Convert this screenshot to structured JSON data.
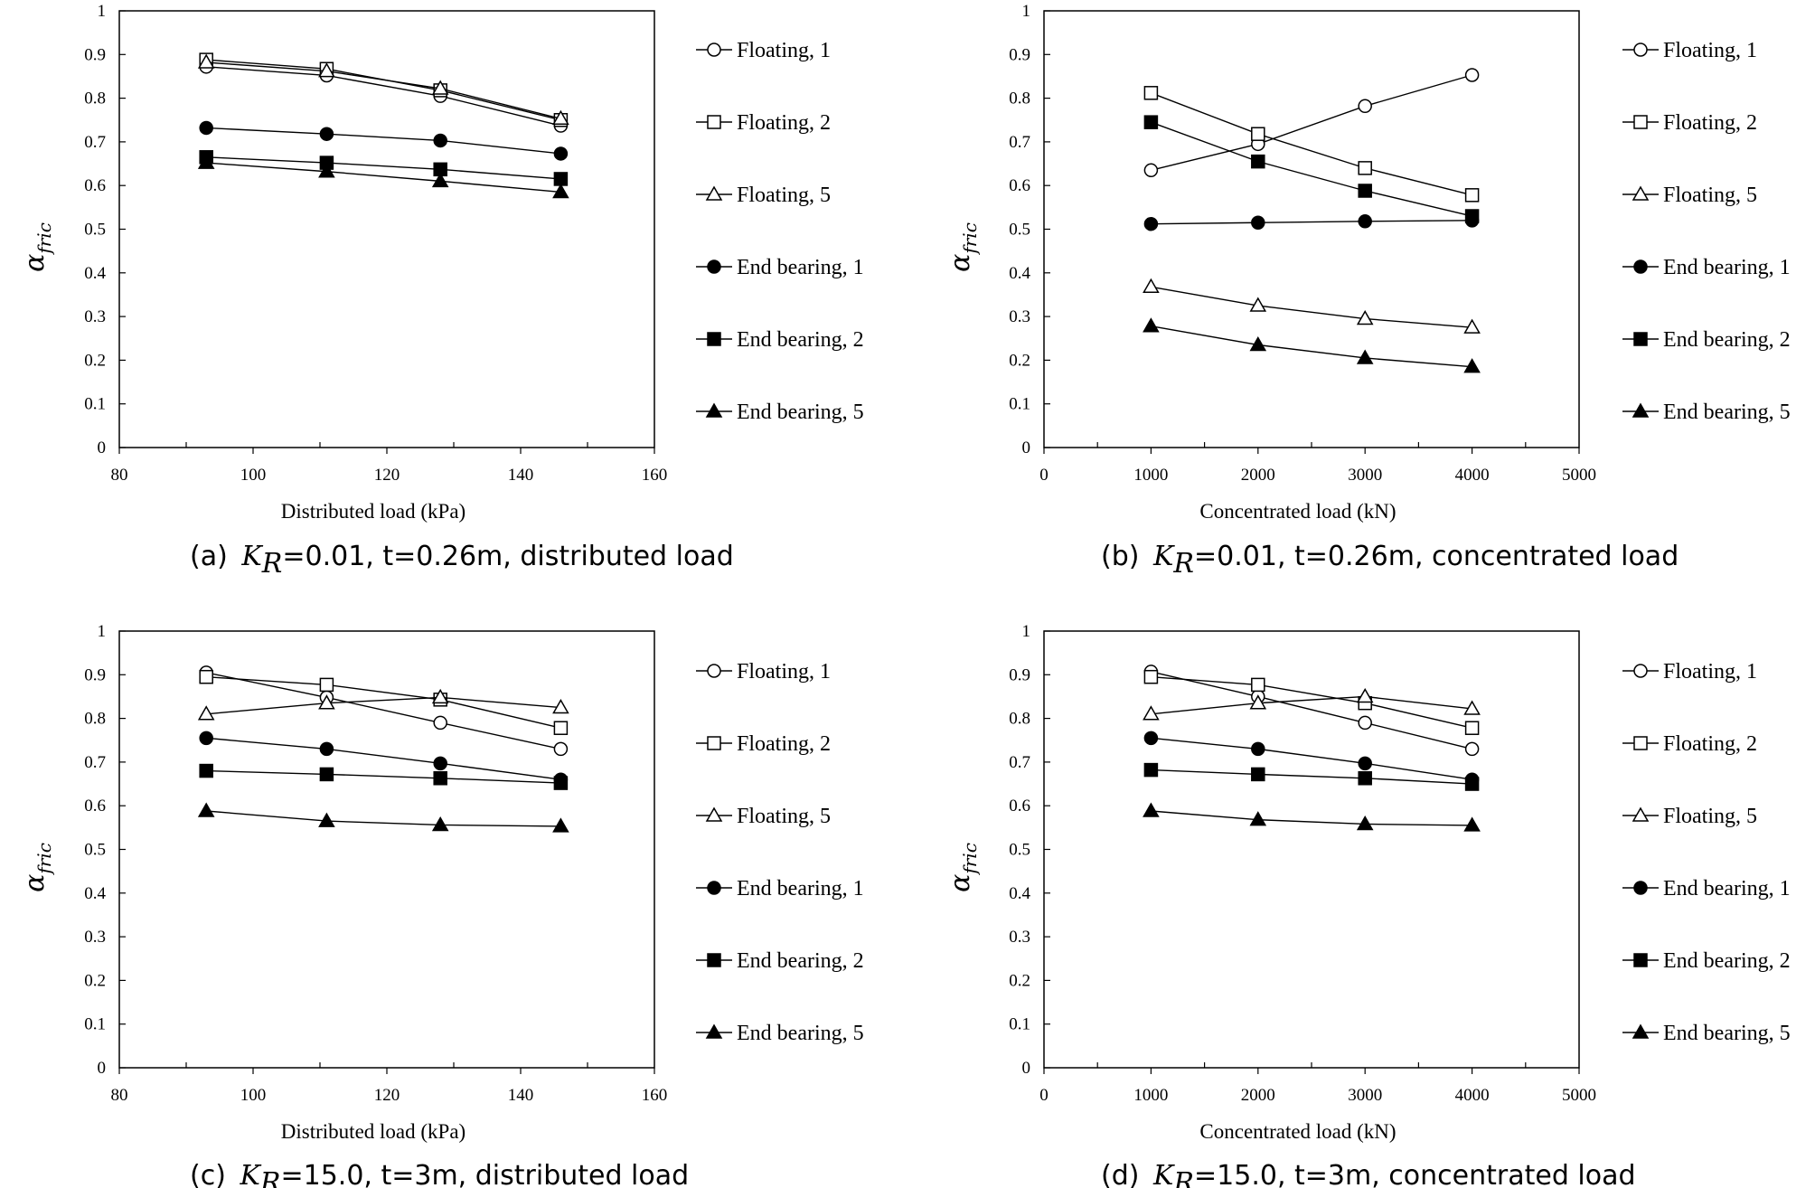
{
  "chart_data": [
    {
      "panel": "a",
      "type": "line",
      "caption": {
        "prefix": "(a) ",
        "symbol": "K",
        "sub": "R",
        "rest": "=0.01,  t=0.26m,  distributed load"
      },
      "xlabel": "Distributed load (kPa)",
      "ylabel": {
        "main": "α",
        "sub": "fric"
      },
      "xlim": [
        80,
        160
      ],
      "xticks": [
        80,
        100,
        120,
        140,
        160
      ],
      "ylim": [
        0,
        1
      ],
      "yticks": [
        0,
        0.1,
        0.2,
        0.3,
        0.4,
        0.5,
        0.6,
        0.7,
        0.8,
        0.9,
        1
      ],
      "ytick_labels": [
        "0",
        "0.1",
        "0.2",
        "0.3",
        "0.4",
        "0.5",
        "0.6",
        "0.7",
        "0.8",
        "0.9",
        "1"
      ],
      "legend_position": "right",
      "x": [
        93,
        111,
        128,
        146
      ],
      "series": [
        {
          "name": "Floating, 1",
          "marker": "circle-open",
          "values": [
            0.872,
            0.852,
            0.805,
            0.737
          ]
        },
        {
          "name": "Floating, 2",
          "marker": "square-open",
          "values": [
            0.888,
            0.867,
            0.818,
            0.75
          ]
        },
        {
          "name": "Floating, 5",
          "marker": "triangle-open",
          "values": [
            0.882,
            0.862,
            0.822,
            0.753
          ]
        },
        {
          "name": "End bearing, 1",
          "marker": "circle-filled",
          "values": [
            0.732,
            0.718,
            0.703,
            0.673
          ]
        },
        {
          "name": "End bearing, 2",
          "marker": "square-filled",
          "values": [
            0.665,
            0.652,
            0.637,
            0.615
          ]
        },
        {
          "name": "End bearing, 5",
          "marker": "triangle-filled",
          "values": [
            0.652,
            0.632,
            0.61,
            0.585
          ]
        }
      ]
    },
    {
      "panel": "b",
      "type": "line",
      "caption": {
        "prefix": "(b) ",
        "symbol": "K",
        "sub": "R",
        "rest": "=0.01,  t=0.26m,  concentrated load"
      },
      "xlabel": "Concentrated load (kN)",
      "ylabel": {
        "main": "α",
        "sub": "fric"
      },
      "xlim": [
        0,
        5000
      ],
      "xticks": [
        0,
        1000,
        2000,
        3000,
        4000,
        5000
      ],
      "ylim": [
        0,
        1
      ],
      "yticks": [
        0,
        0.1,
        0.2,
        0.3,
        0.4,
        0.5,
        0.6,
        0.7,
        0.8,
        0.9,
        1
      ],
      "ytick_labels": [
        "0",
        "0.1",
        "0.2",
        "0.3",
        "0.4",
        "0.5",
        "0.6",
        "0.7",
        "0.8",
        "0.9",
        "1"
      ],
      "legend_position": "right",
      "x": [
        1000,
        2000,
        3000,
        4000
      ],
      "series": [
        {
          "name": "Floating, 1",
          "marker": "circle-open",
          "values": [
            0.635,
            0.695,
            0.782,
            0.853
          ]
        },
        {
          "name": "Floating, 2",
          "marker": "square-open",
          "values": [
            0.812,
            0.718,
            0.64,
            0.578
          ]
        },
        {
          "name": "Floating, 5",
          "marker": "triangle-open",
          "values": [
            0.368,
            0.325,
            0.295,
            0.275
          ]
        },
        {
          "name": "End bearing, 1",
          "marker": "circle-filled",
          "values": [
            0.512,
            0.515,
            0.518,
            0.52
          ]
        },
        {
          "name": "End bearing, 2",
          "marker": "square-filled",
          "values": [
            0.745,
            0.655,
            0.588,
            0.53
          ]
        },
        {
          "name": "End bearing, 5",
          "marker": "triangle-filled",
          "values": [
            0.278,
            0.235,
            0.205,
            0.185
          ]
        }
      ]
    },
    {
      "panel": "c",
      "type": "line",
      "caption": {
        "prefix": "(c) ",
        "symbol": "K",
        "sub": "R",
        "rest": "=15.0,  t=3m,  distributed load"
      },
      "xlabel": "Distributed load (kPa)",
      "ylabel": {
        "main": "α",
        "sub": "fric"
      },
      "xlim": [
        80,
        160
      ],
      "xticks": [
        80,
        100,
        120,
        140,
        160
      ],
      "ylim": [
        0,
        1
      ],
      "yticks": [
        0,
        0.1,
        0.2,
        0.3,
        0.4,
        0.5,
        0.6,
        0.7,
        0.8,
        0.9,
        1
      ],
      "ytick_labels": [
        "0",
        "0.1",
        "0.2",
        "0.3",
        "0.4",
        "0.5",
        "0.6",
        "0.7",
        "0.8",
        "0.9",
        "1"
      ],
      "legend_position": "right",
      "x": [
        93,
        111,
        128,
        146
      ],
      "series": [
        {
          "name": "Floating, 1",
          "marker": "circle-open",
          "values": [
            0.905,
            0.848,
            0.79,
            0.73
          ]
        },
        {
          "name": "Floating, 2",
          "marker": "square-open",
          "values": [
            0.895,
            0.877,
            0.843,
            0.778
          ]
        },
        {
          "name": "Floating, 5",
          "marker": "triangle-open",
          "values": [
            0.81,
            0.835,
            0.848,
            0.825
          ]
        },
        {
          "name": "End bearing, 1",
          "marker": "circle-filled",
          "values": [
            0.755,
            0.73,
            0.697,
            0.66
          ]
        },
        {
          "name": "End bearing, 2",
          "marker": "square-filled",
          "values": [
            0.68,
            0.672,
            0.663,
            0.652
          ]
        },
        {
          "name": "End bearing, 5",
          "marker": "triangle-filled",
          "values": [
            0.588,
            0.565,
            0.556,
            0.553
          ]
        }
      ]
    },
    {
      "panel": "d",
      "type": "line",
      "caption": {
        "prefix": "(d) ",
        "symbol": "K",
        "sub": "R",
        "rest": "=15.0,  t=3m,  concentrated load"
      },
      "xlabel": "Concentrated load (kN)",
      "ylabel": {
        "main": "α",
        "sub": "fric"
      },
      "xlim": [
        0,
        5000
      ],
      "xticks": [
        0,
        1000,
        2000,
        3000,
        4000,
        5000
      ],
      "ylim": [
        0,
        1
      ],
      "yticks": [
        0,
        0.1,
        0.2,
        0.3,
        0.4,
        0.5,
        0.6,
        0.7,
        0.8,
        0.9,
        1
      ],
      "ytick_labels": [
        "0",
        "0.1",
        "0.2",
        "0.3",
        "0.4",
        "0.5",
        "0.6",
        "0.7",
        "0.8",
        "0.9",
        "1"
      ],
      "legend_position": "right",
      "x": [
        1000,
        2000,
        3000,
        4000
      ],
      "series": [
        {
          "name": "Floating, 1",
          "marker": "circle-open",
          "values": [
            0.907,
            0.85,
            0.79,
            0.73
          ]
        },
        {
          "name": "Floating, 2",
          "marker": "square-open",
          "values": [
            0.895,
            0.877,
            0.835,
            0.778
          ]
        },
        {
          "name": "Floating, 5",
          "marker": "triangle-open",
          "values": [
            0.81,
            0.835,
            0.85,
            0.822
          ]
        },
        {
          "name": "End bearing, 1",
          "marker": "circle-filled",
          "values": [
            0.755,
            0.73,
            0.697,
            0.66
          ]
        },
        {
          "name": "End bearing, 2",
          "marker": "square-filled",
          "values": [
            0.682,
            0.672,
            0.663,
            0.65
          ]
        },
        {
          "name": "End bearing, 5",
          "marker": "triangle-filled",
          "values": [
            0.588,
            0.568,
            0.558,
            0.555
          ]
        }
      ]
    }
  ]
}
